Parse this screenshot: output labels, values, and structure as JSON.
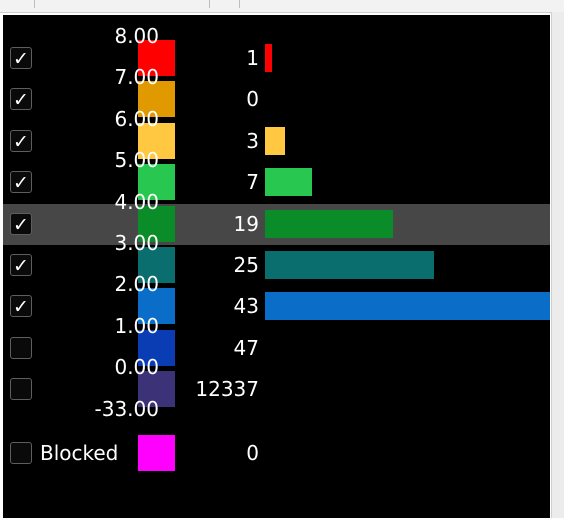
{
  "colors": {
    "panel_background": "#000000",
    "selected_row": "#474747",
    "text": "#ffffff"
  },
  "ticks": [
    "8.00",
    "7.00",
    "6.00",
    "5.00",
    "4.00",
    "3.00",
    "2.00",
    "1.00",
    "0.00",
    "-33.00"
  ],
  "bins": [
    {
      "checked": true,
      "color": "#ff0000",
      "count": "1",
      "bar_value": 1
    },
    {
      "checked": true,
      "color": "#e09a00",
      "count": "0",
      "bar_value": 0
    },
    {
      "checked": true,
      "color": "#ffc840",
      "count": "3",
      "bar_value": 3
    },
    {
      "checked": true,
      "color": "#28c850",
      "count": "7",
      "bar_value": 7
    },
    {
      "checked": true,
      "color": "#0a8c28",
      "count": "19",
      "bar_value": 19,
      "selected": true
    },
    {
      "checked": true,
      "color": "#0a6e6e",
      "count": "25",
      "bar_value": 25
    },
    {
      "checked": true,
      "color": "#0a6ec8",
      "count": "43",
      "bar_value": 43
    },
    {
      "checked": false,
      "color": "#0a3cb4",
      "count": "47",
      "bar_value": 47
    },
    {
      "checked": false,
      "color": "#3c3278",
      "count": "12337",
      "bar_value": 12337
    }
  ],
  "blocked": {
    "checked": false,
    "label": "Blocked",
    "color": "#ff00ff",
    "count": "0"
  },
  "checkmark_glyph": "✓",
  "bar_scale_max_count": 43
}
